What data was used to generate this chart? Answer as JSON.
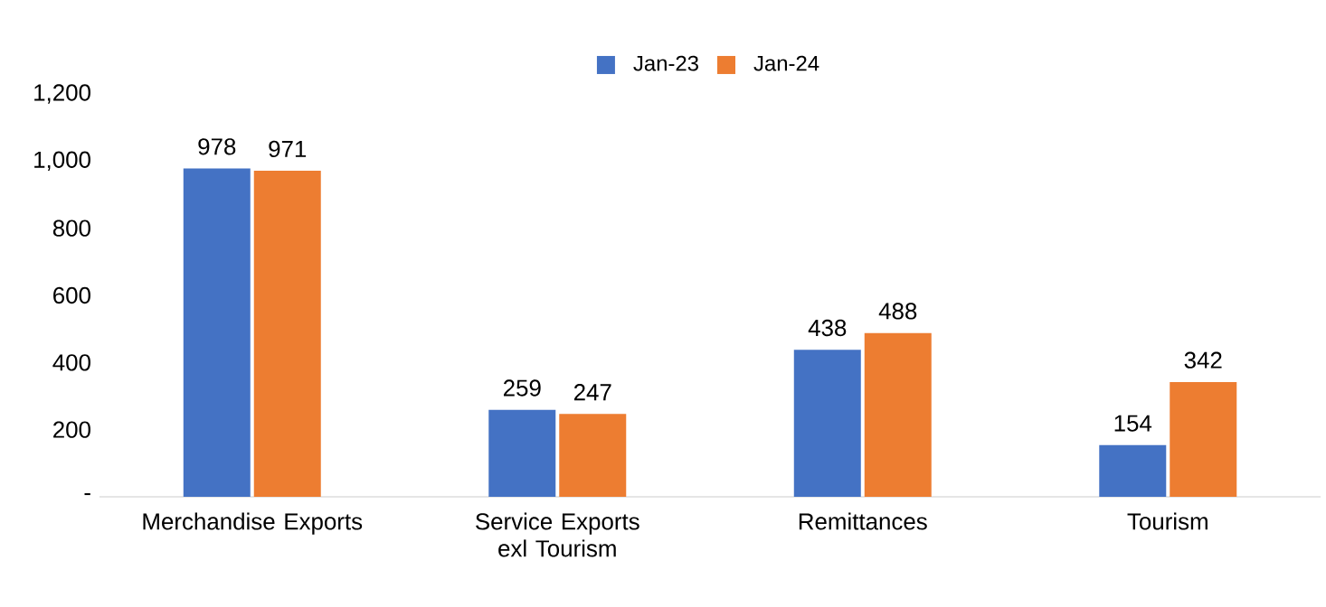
{
  "chart_data": {
    "type": "bar",
    "categories": [
      "Merchandise Exports",
      "Service Exports exl Tourism",
      "Remittances",
      "Tourism"
    ],
    "series": [
      {
        "name": "Jan-23",
        "color": "#4472c4",
        "values": [
          978,
          259,
          438,
          154
        ]
      },
      {
        "name": "Jan-24",
        "color": "#ed7d31",
        "values": [
          971,
          247,
          488,
          342
        ]
      }
    ],
    "ylim": [
      0,
      1200
    ],
    "yticks": [
      {
        "value": 0,
        "label": "-"
      },
      200,
      400,
      600,
      800,
      {
        "value": 1000,
        "label": "1,000"
      },
      {
        "value": 1200,
        "label": "1,200"
      }
    ],
    "data_labels": true,
    "legend": "top"
  }
}
